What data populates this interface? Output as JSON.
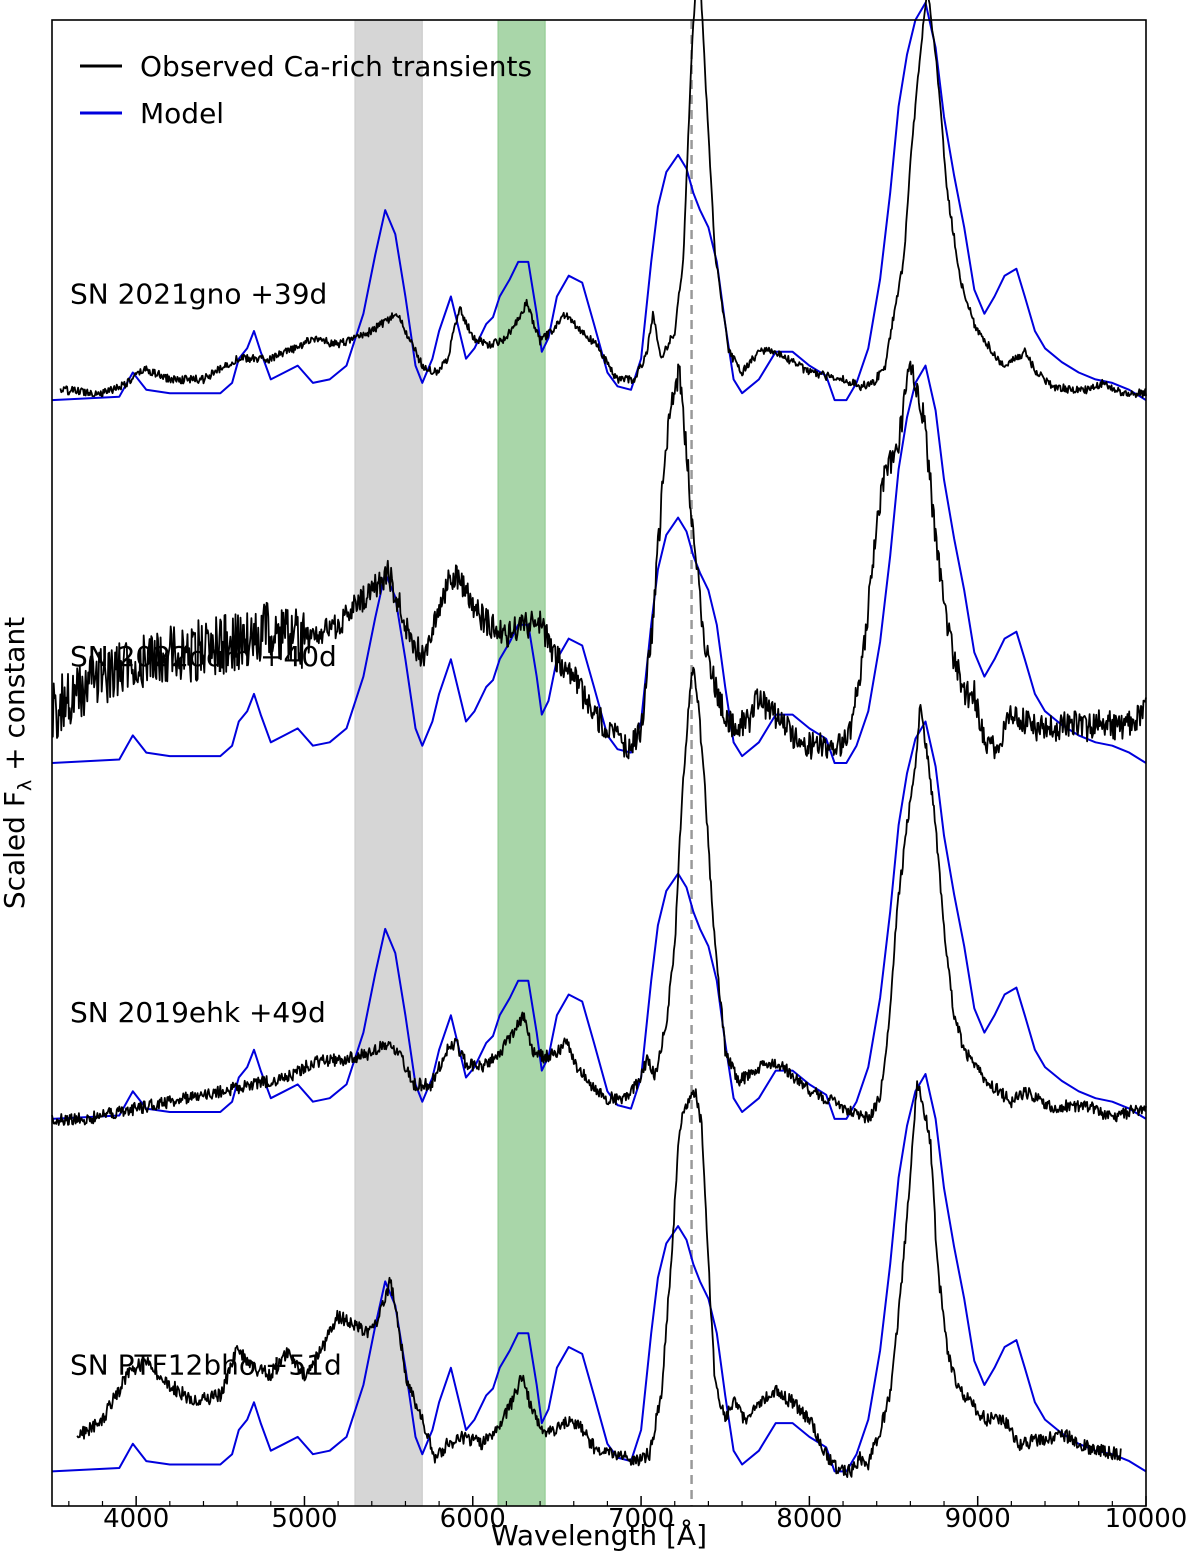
{
  "chart_data": {
    "type": "line",
    "xlabel": "Wavelength [Å]",
    "ylabel": "Scaled F",
    "ylabel_sub": "λ",
    "ylabel_suffix": " + constant",
    "xlim": [
      3500,
      10000
    ],
    "ylim": [
      0,
      4.3
    ],
    "xticks": [
      4000,
      5000,
      6000,
      7000,
      8000,
      9000,
      10000
    ],
    "xtick_labels": [
      "4000",
      "5000",
      "6000",
      "7000",
      "8000",
      "9000",
      "10000"
    ],
    "legend": {
      "placement": "top-left",
      "entries": [
        {
          "label": "Observed Ca-rich transients",
          "color": "#000000"
        },
        {
          "label": "Model",
          "color": "#0000dd"
        }
      ]
    },
    "shaded_regions": [
      {
        "x0": 5300,
        "x1": 5700,
        "color": "#c8c8c8"
      },
      {
        "x0": 6150,
        "x1": 6430,
        "color": "#8cc88c"
      }
    ],
    "vline": {
      "x": 7300,
      "style": "dashed",
      "color": "#999999"
    },
    "model_profile": {
      "x": [
        3500,
        3900,
        3980,
        4060,
        4200,
        4500,
        4570,
        4610,
        4660,
        4700,
        4740,
        4800,
        4880,
        4960,
        5050,
        5150,
        5250,
        5350,
        5420,
        5480,
        5540,
        5600,
        5660,
        5700,
        5760,
        5800,
        5870,
        5920,
        5960,
        6010,
        6080,
        6120,
        6160,
        6220,
        6270,
        6330,
        6380,
        6410,
        6450,
        6500,
        6570,
        6650,
        6720,
        6800,
        6860,
        6940,
        7000,
        7060,
        7100,
        7150,
        7220,
        7270,
        7310,
        7350,
        7400,
        7450,
        7500,
        7550,
        7600,
        7700,
        7800,
        7900,
        8000,
        8100,
        8150,
        8220,
        8280,
        8350,
        8420,
        8480,
        8530,
        8580,
        8630,
        8690,
        8750,
        8800,
        8860,
        8920,
        8980,
        9040,
        9100,
        9160,
        9230,
        9280,
        9340,
        9400,
        9500,
        9600,
        9700,
        9800,
        9900,
        10000
      ],
      "y": [
        0.0,
        0.01,
        0.08,
        0.03,
        0.02,
        0.02,
        0.05,
        0.12,
        0.15,
        0.2,
        0.14,
        0.06,
        0.08,
        0.1,
        0.05,
        0.06,
        0.1,
        0.25,
        0.42,
        0.55,
        0.48,
        0.3,
        0.1,
        0.05,
        0.12,
        0.2,
        0.3,
        0.2,
        0.12,
        0.15,
        0.22,
        0.24,
        0.3,
        0.35,
        0.4,
        0.4,
        0.25,
        0.14,
        0.18,
        0.3,
        0.36,
        0.34,
        0.22,
        0.08,
        0.04,
        0.03,
        0.12,
        0.4,
        0.56,
        0.66,
        0.71,
        0.67,
        0.6,
        0.55,
        0.5,
        0.4,
        0.22,
        0.06,
        0.02,
        0.06,
        0.14,
        0.14,
        0.1,
        0.07,
        0.0,
        0.0,
        0.05,
        0.15,
        0.35,
        0.6,
        0.85,
        1.0,
        1.1,
        1.15,
        1.02,
        0.82,
        0.65,
        0.5,
        0.32,
        0.25,
        0.3,
        0.36,
        0.38,
        0.3,
        0.2,
        0.15,
        0.11,
        0.08,
        0.06,
        0.05,
        0.03,
        0.0
      ]
    },
    "spectra": [
      {
        "label": "SN 2021gno +39d",
        "offset": 3.2,
        "obs_start": 3550,
        "obs_end": 10000,
        "obs_noise": 0.012,
        "obs": {
          "x": [
            3550,
            3800,
            3950,
            4050,
            4200,
            4400,
            4600,
            4800,
            4950,
            5050,
            5200,
            5400,
            5550,
            5620,
            5700,
            5780,
            5850,
            5920,
            6000,
            6100,
            6200,
            6320,
            6400,
            6470,
            6550,
            6650,
            6750,
            6850,
            6960,
            7030,
            7070,
            7120,
            7200,
            7250,
            7300,
            7340,
            7380,
            7440,
            7520,
            7600,
            7700,
            7800,
            7900,
            8000,
            8100,
            8200,
            8300,
            8380,
            8450,
            8520,
            8560,
            8610,
            8660,
            8700,
            8750,
            8820,
            8900,
            8980,
            9060,
            9150,
            9230,
            9280,
            9350,
            9450,
            9550,
            9650,
            9750,
            9850,
            10000
          ],
          "y": [
            0.03,
            0.02,
            0.05,
            0.09,
            0.06,
            0.06,
            0.12,
            0.12,
            0.15,
            0.18,
            0.16,
            0.2,
            0.25,
            0.18,
            0.1,
            0.08,
            0.12,
            0.27,
            0.18,
            0.16,
            0.18,
            0.28,
            0.17,
            0.2,
            0.25,
            0.2,
            0.15,
            0.06,
            0.06,
            0.13,
            0.25,
            0.12,
            0.2,
            0.4,
            1.0,
            1.33,
            0.95,
            0.42,
            0.14,
            0.08,
            0.14,
            0.14,
            0.11,
            0.08,
            0.07,
            0.06,
            0.04,
            0.05,
            0.1,
            0.3,
            0.4,
            0.75,
            1.0,
            1.2,
            1.0,
            0.6,
            0.34,
            0.22,
            0.16,
            0.1,
            0.12,
            0.14,
            0.08,
            0.04,
            0.03,
            0.03,
            0.05,
            0.02,
            0.02
          ]
        }
      },
      {
        "label": "SN 2022oqm +40d",
        "offset": 2.15,
        "obs_start": 3500,
        "obs_end": 10000,
        "obs_noise": 0.04,
        "obs": {
          "x": [
            3500,
            3800,
            4000,
            4300,
            4600,
            4800,
            5000,
            5200,
            5400,
            5500,
            5600,
            5700,
            5800,
            5850,
            5900,
            6000,
            6100,
            6200,
            6300,
            6400,
            6500,
            6600,
            6700,
            6800,
            6900,
            6950,
            7000,
            7060,
            7120,
            7180,
            7230,
            7270,
            7320,
            7380,
            7450,
            7550,
            7650,
            7700,
            7760,
            7850,
            7950,
            8050,
            8150,
            8250,
            8330,
            8400,
            8450,
            8520,
            8600,
            8680,
            8740,
            8800,
            8860,
            8920,
            8980,
            9050,
            9120,
            9200,
            9280,
            9350,
            9450,
            9550,
            9650,
            9750,
            9850,
            10000
          ],
          "y": [
            0.15,
            0.25,
            0.3,
            0.32,
            0.35,
            0.38,
            0.35,
            0.4,
            0.5,
            0.55,
            0.4,
            0.3,
            0.45,
            0.52,
            0.55,
            0.45,
            0.4,
            0.37,
            0.4,
            0.4,
            0.3,
            0.25,
            0.15,
            0.1,
            0.05,
            0.05,
            0.1,
            0.35,
            0.75,
            1.05,
            1.13,
            0.9,
            0.6,
            0.35,
            0.2,
            0.1,
            0.13,
            0.2,
            0.15,
            0.12,
            0.05,
            0.05,
            0.03,
            0.1,
            0.35,
            0.7,
            0.85,
            0.9,
            1.15,
            1.0,
            0.7,
            0.45,
            0.3,
            0.2,
            0.2,
            0.05,
            0.03,
            0.15,
            0.12,
            0.1,
            0.1,
            0.12,
            0.1,
            0.12,
            0.1,
            0.15
          ]
        }
      },
      {
        "label": "SN 2019ehk +49d",
        "offset": 1.12,
        "obs_start": 3500,
        "obs_end": 10000,
        "obs_noise": 0.018,
        "obs": {
          "x": [
            3500,
            3700,
            3900,
            4100,
            4300,
            4500,
            4700,
            4900,
            5000,
            5100,
            5200,
            5400,
            5480,
            5550,
            5650,
            5750,
            5850,
            5900,
            5960,
            6050,
            6150,
            6300,
            6350,
            6420,
            6500,
            6560,
            6620,
            6700,
            6800,
            6920,
            7000,
            7040,
            7080,
            7150,
            7200,
            7240,
            7280,
            7310,
            7340,
            7380,
            7430,
            7500,
            7580,
            7650,
            7750,
            7850,
            7950,
            8050,
            8150,
            8250,
            8350,
            8420,
            8470,
            8520,
            8580,
            8630,
            8660,
            8700,
            8740,
            8800,
            8860,
            8920,
            9000,
            9100,
            9200,
            9280,
            9350,
            9450,
            9550,
            9700,
            9800,
            9900,
            10000
          ],
          "y": [
            0.0,
            0.0,
            0.02,
            0.04,
            0.06,
            0.08,
            0.1,
            0.12,
            0.15,
            0.17,
            0.17,
            0.19,
            0.22,
            0.2,
            0.1,
            0.1,
            0.2,
            0.22,
            0.16,
            0.15,
            0.18,
            0.3,
            0.2,
            0.18,
            0.19,
            0.23,
            0.15,
            0.1,
            0.06,
            0.06,
            0.12,
            0.18,
            0.12,
            0.28,
            0.5,
            0.9,
            1.18,
            1.32,
            1.2,
            0.95,
            0.55,
            0.2,
            0.11,
            0.13,
            0.16,
            0.15,
            0.1,
            0.07,
            0.05,
            0.02,
            0.0,
            0.06,
            0.25,
            0.6,
            0.85,
            1.03,
            1.2,
            1.05,
            0.9,
            0.55,
            0.3,
            0.2,
            0.14,
            0.09,
            0.05,
            0.08,
            0.06,
            0.03,
            0.04,
            0.03,
            0.0,
            0.02,
            0.03
          ]
        }
      },
      {
        "label": "SN PTF12bho +51d",
        "offset": 0.1,
        "obs_start": 3650,
        "obs_end": 9850,
        "obs_noise": 0.02,
        "obs": {
          "x": [
            3650,
            3800,
            3950,
            4050,
            4200,
            4350,
            4500,
            4600,
            4700,
            4800,
            4900,
            5000,
            5100,
            5200,
            5300,
            5400,
            5480,
            5510,
            5550,
            5600,
            5700,
            5780,
            5850,
            5950,
            6050,
            6150,
            6250,
            6290,
            6350,
            6420,
            6500,
            6580,
            6650,
            6750,
            6850,
            6950,
            7050,
            7120,
            7180,
            7230,
            7280,
            7320,
            7360,
            7400,
            7440,
            7500,
            7550,
            7620,
            7700,
            7800,
            7900,
            8000,
            8100,
            8180,
            8250,
            8300,
            8350,
            8420,
            8480,
            8540,
            8600,
            8640,
            8680,
            8720,
            8760,
            8820,
            8880,
            8950,
            9050,
            9150,
            9250,
            9350,
            9450,
            9550,
            9650,
            9750,
            9850
          ],
          "y": [
            0.1,
            0.15,
            0.28,
            0.32,
            0.25,
            0.2,
            0.22,
            0.35,
            0.3,
            0.28,
            0.35,
            0.28,
            0.35,
            0.45,
            0.42,
            0.4,
            0.5,
            0.55,
            0.45,
            0.28,
            0.15,
            0.03,
            0.08,
            0.1,
            0.08,
            0.12,
            0.22,
            0.28,
            0.18,
            0.12,
            0.12,
            0.15,
            0.12,
            0.05,
            0.05,
            0.03,
            0.05,
            0.22,
            0.62,
            1.0,
            1.08,
            1.1,
            1.0,
            0.6,
            0.25,
            0.15,
            0.2,
            0.15,
            0.2,
            0.23,
            0.2,
            0.15,
            0.05,
            0.0,
            0.0,
            0.04,
            0.02,
            0.12,
            0.22,
            0.5,
            0.85,
            1.13,
            1.05,
            0.95,
            0.6,
            0.35,
            0.25,
            0.2,
            0.15,
            0.15,
            0.08,
            0.09,
            0.1,
            0.1,
            0.07,
            0.06,
            0.05
          ]
        }
      }
    ]
  }
}
